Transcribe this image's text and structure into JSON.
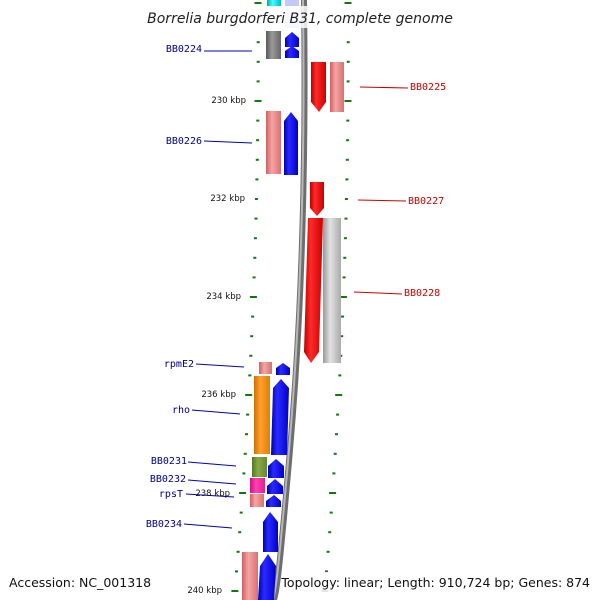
{
  "title": "Borrelia burgdorferi B31, complete genome",
  "footer": {
    "accession": "Accession: NC_001318",
    "summary": "Topology: linear; Length: 910,724 bp; Genes: 874"
  },
  "axis_labels": [
    "230 kbp",
    "232 kbp",
    "234 kbp",
    "236 kbp",
    "238 kbp",
    "240 kbp"
  ],
  "left_genes": [
    "BB0224",
    "BB0226",
    "rpmE2",
    "rho",
    "BB0231",
    "BB0232",
    "rpsT",
    "BB0234"
  ],
  "right_genes": [
    "BB0225",
    "BB0227",
    "BB0228"
  ],
  "colors": {
    "forward_cds": "#0000ee",
    "reverse_cds": "#ee0000",
    "left_label": "#00008b",
    "right_label": "#cc0000",
    "ticks": "#117711",
    "backbone": "#888888"
  }
}
